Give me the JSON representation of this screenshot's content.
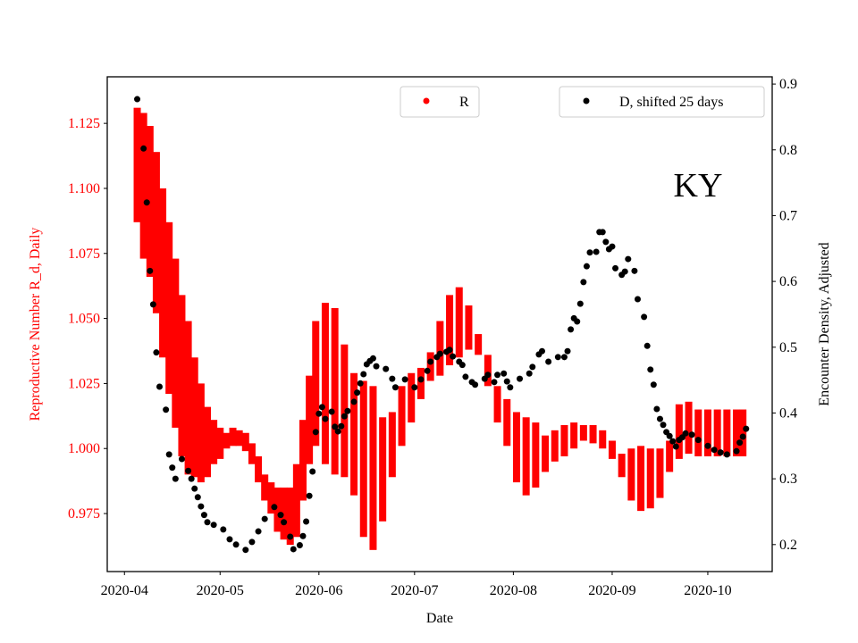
{
  "chart_data": {
    "type": "scatter",
    "title": "",
    "annotation": "KY",
    "xlabel": "Date",
    "x_unit": "days since 2020-04-01",
    "x_ticks": [
      "2020-04",
      "2020-05",
      "2020-06",
      "2020-07",
      "2020-08",
      "2020-09",
      "2020-10"
    ],
    "xlim_days": [
      -5.4,
      203.2
    ],
    "left_axis": {
      "label": "Reproductive Number R_d, Daily",
      "color": "#ff0000",
      "ylim": [
        0.9527,
        1.1429
      ],
      "ticks": [
        "0.975",
        "1.000",
        "1.025",
        "1.050",
        "1.075",
        "1.100",
        "1.125"
      ]
    },
    "right_axis": {
      "label": "Encounter Density, Adjusted",
      "color": "#000000",
      "ylim": [
        0.159,
        0.911
      ],
      "ticks": [
        "0.2",
        "0.3",
        "0.4",
        "0.5",
        "0.6",
        "0.7",
        "0.8",
        "0.9"
      ]
    },
    "legend": [
      {
        "label": "R",
        "color": "#ff0000",
        "placement": "top-center"
      },
      {
        "label": "D, shifted 25 days",
        "color": "#000000",
        "placement": "top-right"
      }
    ],
    "series_R_columns": [
      "day",
      "mean",
      "lower",
      "upper"
    ],
    "series_R": [
      [
        4,
        1.111,
        1.087,
        1.131
      ],
      [
        6,
        1.102,
        1.073,
        1.129
      ],
      [
        8,
        1.095,
        1.066,
        1.124
      ],
      [
        10,
        1.083,
        1.052,
        1.114
      ],
      [
        12,
        1.068,
        1.035,
        1.1
      ],
      [
        14,
        1.054,
        1.021,
        1.087
      ],
      [
        16,
        1.04,
        1.008,
        1.073
      ],
      [
        18,
        1.028,
        0.997,
        1.059
      ],
      [
        20,
        1.02,
        0.99,
        1.049
      ],
      [
        22,
        1.013,
        0.989,
        1.035
      ],
      [
        24,
        1.008,
        0.987,
        1.025
      ],
      [
        26,
        1.004,
        0.989,
        1.016
      ],
      [
        28,
        1.003,
        0.994,
        1.011
      ],
      [
        30,
        1.002,
        0.996,
        1.008
      ],
      [
        32,
        1.003,
        1.0,
        1.006
      ],
      [
        34,
        1.004,
        1.001,
        1.008
      ],
      [
        36,
        1.004,
        1.001,
        1.007
      ],
      [
        38,
        1.002,
        0.999,
        1.006
      ],
      [
        40,
        0.998,
        0.994,
        1.002
      ],
      [
        42,
        0.992,
        0.987,
        0.997
      ],
      [
        44,
        0.985,
        0.98,
        0.99
      ],
      [
        46,
        0.981,
        0.975,
        0.987
      ],
      [
        48,
        0.977,
        0.968,
        0.985
      ],
      [
        50,
        0.975,
        0.965,
        0.985
      ],
      [
        52,
        0.973,
        0.963,
        0.985
      ],
      [
        54,
        0.98,
        0.966,
        0.994
      ],
      [
        56,
        0.996,
        0.98,
        1.011
      ],
      [
        58,
        1.011,
        0.994,
        1.028
      ],
      [
        60,
        1.021,
        1.001,
        1.049
      ],
      [
        63,
        1.025,
        0.994,
        1.056
      ],
      [
        66,
        1.022,
        0.99,
        1.054
      ],
      [
        69,
        1.014,
        0.989,
        1.04
      ],
      [
        72,
        1.006,
        0.982,
        1.029
      ],
      [
        75,
        0.996,
        0.966,
        1.026
      ],
      [
        78,
        0.992,
        0.961,
        1.024
      ],
      [
        81,
        0.992,
        0.972,
        1.012
      ],
      [
        84,
        1.002,
        0.989,
        1.014
      ],
      [
        87,
        1.012,
        1.001,
        1.024
      ],
      [
        90,
        1.02,
        1.01,
        1.029
      ],
      [
        93,
        1.025,
        1.019,
        1.031
      ],
      [
        96,
        1.032,
        1.026,
        1.037
      ],
      [
        99,
        1.038,
        1.028,
        1.049
      ],
      [
        102,
        1.045,
        1.032,
        1.059
      ],
      [
        105,
        1.049,
        1.035,
        1.062
      ],
      [
        108,
        1.047,
        1.038,
        1.055
      ],
      [
        111,
        1.04,
        1.036,
        1.044
      ],
      [
        114,
        1.03,
        1.024,
        1.036
      ],
      [
        117,
        1.017,
        1.01,
        1.024
      ],
      [
        120,
        1.01,
        1.001,
        1.019
      ],
      [
        123,
        1.001,
        0.987,
        1.014
      ],
      [
        126,
        0.997,
        0.982,
        1.012
      ],
      [
        129,
        0.997,
        0.985,
        1.01
      ],
      [
        132,
        0.998,
        0.991,
        1.005
      ],
      [
        135,
        1.001,
        0.995,
        1.007
      ],
      [
        138,
        1.003,
        0.997,
        1.009
      ],
      [
        141,
        1.005,
        1.0,
        1.01
      ],
      [
        144,
        1.006,
        1.003,
        1.009
      ],
      [
        147,
        1.005,
        1.002,
        1.009
      ],
      [
        150,
        1.003,
        1.0,
        1.007
      ],
      [
        153,
        1.0,
        0.996,
        1.003
      ],
      [
        156,
        0.994,
        0.989,
        0.998
      ],
      [
        159,
        0.99,
        0.98,
        1.0
      ],
      [
        162,
        0.988,
        0.976,
        1.001
      ],
      [
        165,
        0.989,
        0.977,
        1.0
      ],
      [
        168,
        0.991,
        0.981,
        1.0
      ],
      [
        171,
        0.997,
        0.991,
        1.003
      ],
      [
        174,
        1.007,
        0.996,
        1.017
      ],
      [
        177,
        1.008,
        0.998,
        1.018
      ],
      [
        180,
        1.006,
        0.997,
        1.015
      ],
      [
        183,
        1.006,
        0.997,
        1.015
      ],
      [
        186,
        1.006,
        0.997,
        1.015
      ],
      [
        189,
        1.006,
        0.997,
        1.015
      ],
      [
        192,
        1.006,
        0.997,
        1.015
      ],
      [
        194,
        1.006,
        0.997,
        1.015
      ]
    ],
    "series_D_columns": [
      "day",
      "value"
    ],
    "series_D": [
      [
        4,
        0.877
      ],
      [
        6,
        0.802
      ],
      [
        7,
        0.72
      ],
      [
        8,
        0.616
      ],
      [
        9,
        0.565
      ],
      [
        10,
        0.492
      ],
      [
        11,
        0.44
      ],
      [
        13,
        0.405
      ],
      [
        14,
        0.337
      ],
      [
        15,
        0.317
      ],
      [
        16,
        0.3
      ],
      [
        18,
        0.33
      ],
      [
        20,
        0.312
      ],
      [
        21,
        0.3
      ],
      [
        22,
        0.285
      ],
      [
        23,
        0.272
      ],
      [
        24,
        0.258
      ],
      [
        25,
        0.245
      ],
      [
        26,
        0.234
      ],
      [
        28,
        0.23
      ],
      [
        31,
        0.223
      ],
      [
        33,
        0.208
      ],
      [
        35,
        0.2
      ],
      [
        38,
        0.192
      ],
      [
        40,
        0.204
      ],
      [
        42,
        0.22
      ],
      [
        44,
        0.239
      ],
      [
        47,
        0.257
      ],
      [
        49,
        0.245
      ],
      [
        50,
        0.234
      ],
      [
        52,
        0.212
      ],
      [
        53,
        0.193
      ],
      [
        55,
        0.199
      ],
      [
        56,
        0.213
      ],
      [
        57,
        0.235
      ],
      [
        58,
        0.274
      ],
      [
        59,
        0.311
      ],
      [
        60,
        0.371
      ],
      [
        61,
        0.399
      ],
      [
        62,
        0.409
      ],
      [
        63,
        0.391
      ],
      [
        65,
        0.402
      ],
      [
        66,
        0.379
      ],
      [
        67,
        0.372
      ],
      [
        68,
        0.38
      ],
      [
        69,
        0.395
      ],
      [
        70,
        0.403
      ],
      [
        72,
        0.417
      ],
      [
        73,
        0.431
      ],
      [
        74,
        0.445
      ],
      [
        75,
        0.459
      ],
      [
        76,
        0.474
      ],
      [
        77,
        0.479
      ],
      [
        78,
        0.483
      ],
      [
        79,
        0.471
      ],
      [
        82,
        0.467
      ],
      [
        84,
        0.452
      ],
      [
        85,
        0.439
      ],
      [
        88,
        0.451
      ],
      [
        91,
        0.439
      ],
      [
        93,
        0.451
      ],
      [
        95,
        0.464
      ],
      [
        96,
        0.478
      ],
      [
        98,
        0.485
      ],
      [
        99,
        0.49
      ],
      [
        101,
        0.493
      ],
      [
        102,
        0.496
      ],
      [
        103,
        0.486
      ],
      [
        105,
        0.478
      ],
      [
        106,
        0.473
      ],
      [
        107,
        0.455
      ],
      [
        109,
        0.447
      ],
      [
        110,
        0.443
      ],
      [
        113,
        0.452
      ],
      [
        114,
        0.458
      ],
      [
        116,
        0.447
      ],
      [
        117,
        0.458
      ],
      [
        119,
        0.46
      ],
      [
        120,
        0.448
      ],
      [
        121,
        0.439
      ],
      [
        124,
        0.452
      ],
      [
        127,
        0.46
      ],
      [
        128,
        0.47
      ],
      [
        130,
        0.489
      ],
      [
        131,
        0.494
      ],
      [
        133,
        0.478
      ],
      [
        136,
        0.485
      ],
      [
        138,
        0.485
      ],
      [
        139,
        0.494
      ],
      [
        140,
        0.527
      ],
      [
        141,
        0.544
      ],
      [
        142,
        0.539
      ],
      [
        143,
        0.566
      ],
      [
        144,
        0.599
      ],
      [
        145,
        0.623
      ],
      [
        146,
        0.644
      ],
      [
        148,
        0.645
      ],
      [
        149,
        0.675
      ],
      [
        150,
        0.675
      ],
      [
        151,
        0.66
      ],
      [
        152,
        0.649
      ],
      [
        153,
        0.653
      ],
      [
        154,
        0.62
      ],
      [
        156,
        0.61
      ],
      [
        157,
        0.615
      ],
      [
        158,
        0.634
      ],
      [
        160,
        0.616
      ],
      [
        161,
        0.573
      ],
      [
        163,
        0.546
      ],
      [
        164,
        0.502
      ],
      [
        165,
        0.466
      ],
      [
        166,
        0.443
      ],
      [
        167,
        0.406
      ],
      [
        168,
        0.391
      ],
      [
        169,
        0.382
      ],
      [
        170,
        0.371
      ],
      [
        171,
        0.365
      ],
      [
        172,
        0.357
      ],
      [
        173,
        0.349
      ],
      [
        174,
        0.359
      ],
      [
        175,
        0.363
      ],
      [
        176,
        0.369
      ],
      [
        178,
        0.367
      ],
      [
        180,
        0.359
      ],
      [
        183,
        0.35
      ],
      [
        185,
        0.344
      ],
      [
        187,
        0.34
      ],
      [
        189,
        0.337
      ],
      [
        192,
        0.342
      ],
      [
        193,
        0.355
      ],
      [
        194,
        0.364
      ],
      [
        195,
        0.376
      ]
    ]
  }
}
